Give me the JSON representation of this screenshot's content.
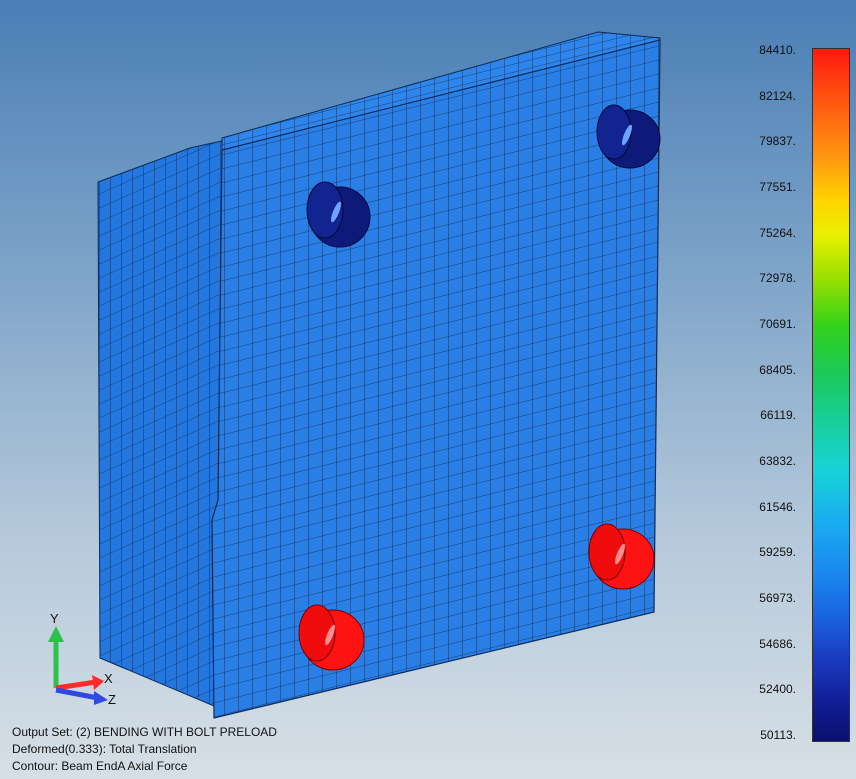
{
  "legend": {
    "colors": {
      "max": "#ff1a10",
      "mid": "#1ac85a",
      "min": "#0a0f6e"
    },
    "values": [
      "84410.",
      "82124.",
      "79837.",
      "77551.",
      "75264.",
      "72978.",
      "70691.",
      "68405.",
      "66119.",
      "63832.",
      "61546.",
      "59259.",
      "56973.",
      "54686.",
      "52400.",
      "50113."
    ]
  },
  "triad": {
    "y": "Y",
    "x": "X",
    "z": "Z"
  },
  "info": {
    "line1": "Output Set: (2) BENDING WITH BOLT PRELOAD",
    "line2": "Deformed(0.333): Total Translation",
    "line3": "Contour: Beam EndA Axial Force"
  },
  "model": {
    "mesh_color": "#2a7fe6",
    "mesh_line_color": "#0c2a55",
    "bolt_low_color": "#0d1a7a",
    "bolt_high_color": "#ff1212"
  }
}
